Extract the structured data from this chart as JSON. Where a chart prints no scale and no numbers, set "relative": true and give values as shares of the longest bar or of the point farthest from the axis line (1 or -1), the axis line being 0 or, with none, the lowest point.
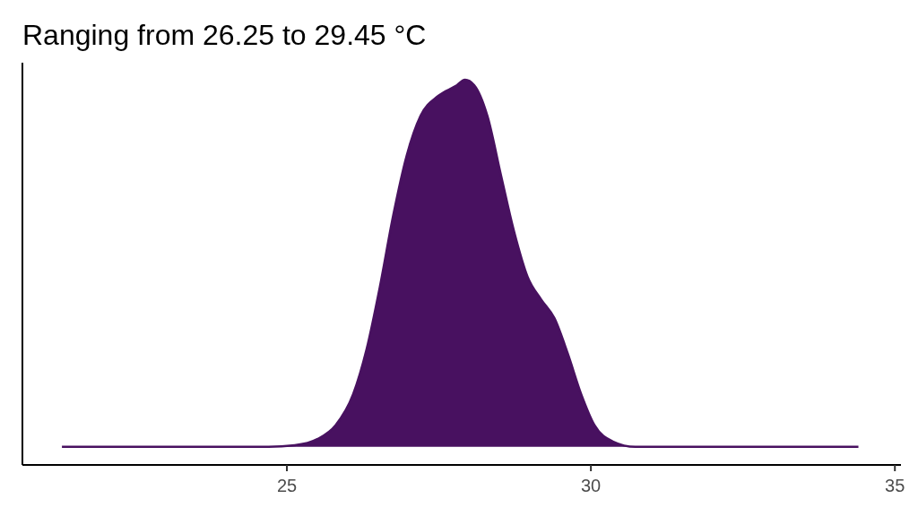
{
  "chart_data": {
    "type": "area",
    "title": "Ranging from 26.25 to 29.45 °C",
    "relative": true,
    "x": [
      21.3,
      24.7,
      25.13,
      25.5,
      25.8,
      26.09,
      26.31,
      26.53,
      26.75,
      26.97,
      27.2,
      27.49,
      27.78,
      27.93,
      28.08,
      28.3,
      28.52,
      28.74,
      28.96,
      29.18,
      29.4,
      29.62,
      29.84,
      30.06,
      30.36,
      30.73,
      34.4
    ],
    "series": [
      {
        "color": "#481160",
        "values": [
          0.047,
          0.047,
          0.051,
          0.067,
          0.103,
          0.184,
          0.3,
          0.463,
          0.649,
          0.803,
          0.907,
          0.958,
          0.984,
          1,
          0.986,
          0.905,
          0.753,
          0.604,
          0.488,
          0.43,
          0.381,
          0.289,
          0.184,
          0.103,
          0.061,
          0.047,
          0.047
        ]
      }
    ],
    "xlim": [
      20.65,
      35.1
    ],
    "xticks": [
      25,
      30,
      35
    ],
    "grid": false
  }
}
